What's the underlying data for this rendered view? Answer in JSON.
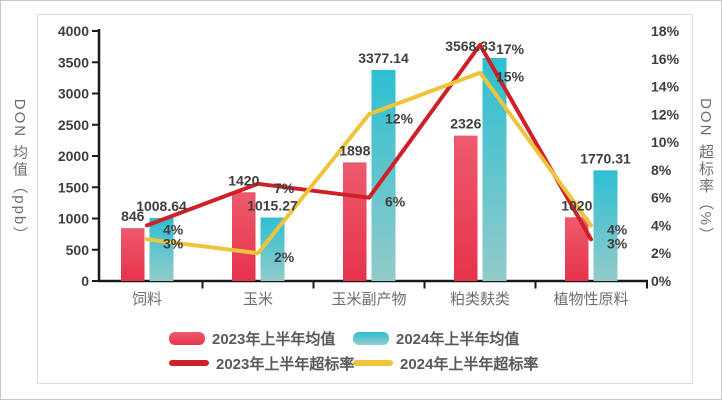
{
  "chart_data": {
    "type": "combo-bar-line",
    "categories": [
      "饲料",
      "玉米",
      "玉米副产物",
      "粕类麸类",
      "植物性原料"
    ],
    "series": [
      {
        "name": "2023年上半年均值",
        "type": "bar",
        "axis": "left",
        "values": [
          846,
          1420,
          1898,
          2326,
          1020
        ],
        "labels": [
          "846",
          "1420",
          "1898",
          "2326",
          "1020"
        ],
        "color_top": "#ED5A6E",
        "color_bottom": "#E6334C"
      },
      {
        "name": "2024年上半年均值",
        "type": "bar",
        "axis": "left",
        "values": [
          1008.64,
          1015.27,
          3377.14,
          3568.33,
          1770.31
        ],
        "labels": [
          "1008.64",
          "1015.27",
          "3377.14",
          "3568.33",
          "1770.31"
        ],
        "color_top": "#2DBFD2",
        "color_bottom": "#92CBCA"
      },
      {
        "name": "2023年上半年超标率",
        "type": "line",
        "axis": "right",
        "values": [
          4,
          7,
          6,
          17,
          3
        ],
        "labels": [
          "4%",
          "7%",
          "6%",
          "17%",
          "3%"
        ],
        "color": "#CE2127"
      },
      {
        "name": "2024年上半年超标率",
        "type": "line",
        "axis": "right",
        "values": [
          3,
          2,
          12,
          15,
          4
        ],
        "labels": [
          "3%",
          "2%",
          "12%",
          "15%",
          "4%"
        ],
        "color": "#EFC43C"
      }
    ],
    "left_axis": {
      "title": "DON 均值（ppb）",
      "min": 0,
      "max": 4000,
      "step": 500,
      "tick_labels": [
        "0",
        "500",
        "1000",
        "1500",
        "2000",
        "2500",
        "3000",
        "3500",
        "4000"
      ]
    },
    "right_axis": {
      "title": "DON 超标率（%）",
      "min": 0,
      "max": 18,
      "step": 2,
      "tick_labels": [
        "0%",
        "2%",
        "4%",
        "6%",
        "8%",
        "10%",
        "12%",
        "14%",
        "16%",
        "18%"
      ]
    },
    "grid": false,
    "legend_position": "bottom",
    "colors": {
      "axis_line": "#1a1a1a",
      "value_label": "#3f3f3f",
      "category_label": "#6e6e6e",
      "legend_text": "#595959",
      "panel_border": "#dcdcdc"
    }
  }
}
